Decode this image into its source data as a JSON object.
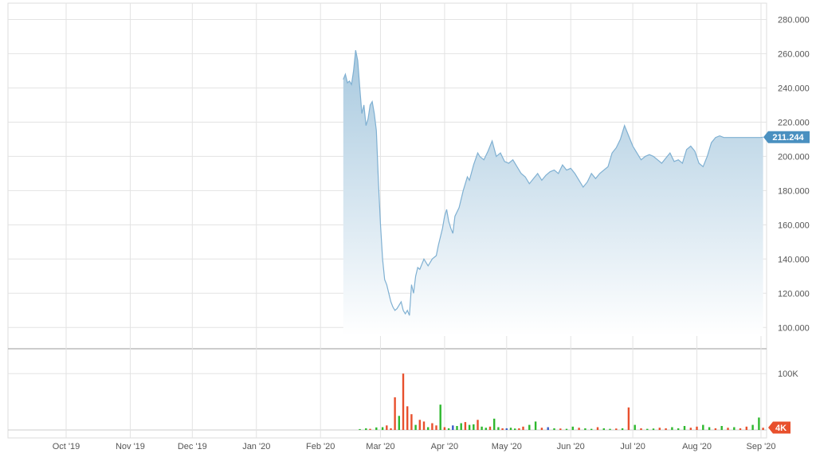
{
  "chart_data": {
    "type": "area",
    "price_axis": {
      "ticks": [
        "280.000",
        "260.000",
        "240.000",
        "220.000",
        "200.000",
        "180.000",
        "160.000",
        "140.000",
        "120.000",
        "100.000"
      ],
      "ylim": [
        95,
        283
      ]
    },
    "volume_axis": {
      "ticks": [
        "100K"
      ],
      "ylim": [
        0,
        130000
      ]
    },
    "x_axis": {
      "ticks": [
        "Oct '19",
        "Nov '19",
        "Dec '19",
        "Jan '20",
        "Feb '20",
        "Mar '20",
        "Apr '20",
        "May '20",
        "Jun '20",
        "Jul '20",
        "Aug '20",
        "Sep '20"
      ]
    },
    "last_price_label": "211.244",
    "last_volume_label": "4K",
    "grid": true,
    "colors": {
      "line": "#7fb0d2",
      "area_top": "#a8c9df",
      "area_bottom": "#ffffff",
      "badge": "#4a90c0",
      "volume_up": "#2eb82e",
      "volume_down": "#e8502d",
      "volume_flat": "#3a5cc8",
      "volume_badge": "#e8502d"
    },
    "price_series": {
      "name": "",
      "x": [
        "2020-02-12",
        "2020-02-13",
        "2020-02-14",
        "2020-02-15",
        "2020-02-16",
        "2020-02-17",
        "2020-02-18",
        "2020-02-19",
        "2020-02-20",
        "2020-02-21",
        "2020-02-22",
        "2020-02-23",
        "2020-02-24",
        "2020-02-25",
        "2020-02-26",
        "2020-02-27",
        "2020-02-28",
        "2020-02-29",
        "2020-03-01",
        "2020-03-02",
        "2020-03-03",
        "2020-03-04",
        "2020-03-05",
        "2020-03-06",
        "2020-03-07",
        "2020-03-08",
        "2020-03-09",
        "2020-03-10",
        "2020-03-11",
        "2020-03-12",
        "2020-03-13",
        "2020-03-14",
        "2020-03-15",
        "2020-03-16",
        "2020-03-17",
        "2020-03-18",
        "2020-03-19",
        "2020-03-20",
        "2020-03-22",
        "2020-03-24",
        "2020-03-26",
        "2020-03-28",
        "2020-03-29",
        "2020-03-31",
        "2020-04-01",
        "2020-04-02",
        "2020-04-03",
        "2020-04-04",
        "2020-04-05",
        "2020-04-06",
        "2020-04-08",
        "2020-04-10",
        "2020-04-12",
        "2020-04-13",
        "2020-04-15",
        "2020-04-17",
        "2020-04-18",
        "2020-04-20",
        "2020-04-22",
        "2020-04-24",
        "2020-04-26",
        "2020-04-28",
        "2020-04-30",
        "2020-05-02",
        "2020-05-04",
        "2020-05-06",
        "2020-05-08",
        "2020-05-10",
        "2020-05-12",
        "2020-05-14",
        "2020-05-16",
        "2020-05-18",
        "2020-05-20",
        "2020-05-22",
        "2020-05-24",
        "2020-05-26",
        "2020-05-28",
        "2020-05-30",
        "2020-06-01",
        "2020-06-03",
        "2020-06-05",
        "2020-06-07",
        "2020-06-09",
        "2020-06-11",
        "2020-06-13",
        "2020-06-15",
        "2020-06-17",
        "2020-06-19",
        "2020-06-21",
        "2020-06-23",
        "2020-06-25",
        "2020-06-27",
        "2020-06-29",
        "2020-07-01",
        "2020-07-03",
        "2020-07-05",
        "2020-07-07",
        "2020-07-09",
        "2020-07-11",
        "2020-07-13",
        "2020-07-15",
        "2020-07-17",
        "2020-07-19",
        "2020-07-21",
        "2020-07-23",
        "2020-07-25",
        "2020-07-27",
        "2020-07-29",
        "2020-07-31",
        "2020-08-02",
        "2020-08-04",
        "2020-08-06",
        "2020-08-08",
        "2020-08-10",
        "2020-08-12",
        "2020-08-14",
        "2020-08-16",
        "2020-08-18",
        "2020-08-20",
        "2020-08-22",
        "2020-08-24",
        "2020-08-26",
        "2020-08-28",
        "2020-08-30",
        "2020-09-01",
        "2020-09-02"
      ],
      "y": [
        245,
        248,
        243,
        244,
        242,
        250,
        262,
        256,
        240,
        225,
        230,
        218,
        222,
        230,
        232,
        225,
        215,
        185,
        160,
        140,
        128,
        125,
        120,
        115,
        112,
        110,
        111,
        113,
        115,
        110,
        108,
        110,
        107,
        125,
        120,
        130,
        135,
        134,
        140,
        136,
        140,
        142,
        148,
        158,
        165,
        169,
        162,
        158,
        155,
        165,
        170,
        180,
        188,
        186,
        195,
        202,
        200,
        198,
        203,
        209,
        200,
        202,
        197,
        196,
        198,
        194,
        190,
        188,
        184,
        187,
        190,
        186,
        189,
        191,
        192,
        190,
        195,
        192,
        193,
        190,
        186,
        182,
        185,
        190,
        187,
        190,
        192,
        194,
        202,
        205,
        210,
        218,
        212,
        206,
        202,
        198,
        200,
        201,
        200,
        198,
        196,
        199,
        202,
        197,
        198,
        196,
        204,
        206,
        203,
        196,
        194,
        200,
        208,
        211,
        212,
        211,
        211,
        211,
        211,
        211,
        211,
        211,
        211,
        211,
        211,
        211.244
      ]
    },
    "volume_series": {
      "x": [
        "2020-02-20",
        "2020-02-23",
        "2020-02-25",
        "2020-02-28",
        "2020-03-02",
        "2020-03-04",
        "2020-03-06",
        "2020-03-08",
        "2020-03-10",
        "2020-03-12",
        "2020-03-14",
        "2020-03-16",
        "2020-03-18",
        "2020-03-20",
        "2020-03-22",
        "2020-03-24",
        "2020-03-26",
        "2020-03-28",
        "2020-03-30",
        "2020-04-01",
        "2020-04-03",
        "2020-04-05",
        "2020-04-07",
        "2020-04-09",
        "2020-04-11",
        "2020-04-13",
        "2020-04-15",
        "2020-04-17",
        "2020-04-19",
        "2020-04-21",
        "2020-04-23",
        "2020-04-25",
        "2020-04-27",
        "2020-04-29",
        "2020-05-01",
        "2020-05-03",
        "2020-05-05",
        "2020-05-07",
        "2020-05-09",
        "2020-05-12",
        "2020-05-15",
        "2020-05-18",
        "2020-05-21",
        "2020-05-24",
        "2020-05-27",
        "2020-05-30",
        "2020-06-02",
        "2020-06-05",
        "2020-06-08",
        "2020-06-11",
        "2020-06-14",
        "2020-06-17",
        "2020-06-20",
        "2020-06-23",
        "2020-06-26",
        "2020-06-29",
        "2020-07-02",
        "2020-07-05",
        "2020-07-08",
        "2020-07-11",
        "2020-07-14",
        "2020-07-17",
        "2020-07-20",
        "2020-07-23",
        "2020-07-26",
        "2020-07-29",
        "2020-08-01",
        "2020-08-04",
        "2020-08-07",
        "2020-08-10",
        "2020-08-13",
        "2020-08-16",
        "2020-08-19",
        "2020-08-22",
        "2020-08-25",
        "2020-08-28",
        "2020-08-31",
        "2020-09-02"
      ],
      "v": [
        1500,
        3000,
        2000,
        4500,
        5000,
        8000,
        3000,
        58000,
        25000,
        100000,
        42000,
        28000,
        9000,
        18000,
        15000,
        5000,
        12000,
        8000,
        45000,
        5000,
        3000,
        8000,
        7000,
        12000,
        14000,
        9000,
        10000,
        18000,
        6000,
        4000,
        6000,
        20000,
        5000,
        3000,
        3000,
        4000,
        2500,
        3000,
        6000,
        9000,
        15000,
        4000,
        5000,
        3000,
        2500,
        2000,
        6000,
        4000,
        3000,
        2000,
        5000,
        3000,
        2000,
        2500,
        3000,
        40000,
        9000,
        3000,
        2000,
        2500,
        4000,
        3000,
        5000,
        3000,
        7000,
        4000,
        6000,
        9000,
        5000,
        3000,
        7000,
        4000,
        5000,
        3000,
        6000,
        9000,
        22000,
        4000
      ],
      "dir": [
        "up",
        "up",
        "down",
        "up",
        "up",
        "down",
        "down",
        "down",
        "up",
        "down",
        "down",
        "down",
        "up",
        "down",
        "down",
        "up",
        "down",
        "down",
        "up",
        "down",
        "up",
        "flat",
        "up",
        "up",
        "down",
        "up",
        "up",
        "down",
        "up",
        "up",
        "down",
        "up",
        "up",
        "down",
        "flat",
        "up",
        "up",
        "down",
        "down",
        "up",
        "up",
        "down",
        "flat",
        "up",
        "down",
        "up",
        "up",
        "down",
        "up",
        "up",
        "down",
        "up",
        "up",
        "down",
        "up",
        "down",
        "up",
        "down",
        "up",
        "up",
        "down",
        "down",
        "up",
        "up",
        "up",
        "down",
        "down",
        "up",
        "up",
        "down",
        "up",
        "down",
        "up",
        "down",
        "down",
        "up",
        "up",
        "down"
      ]
    }
  }
}
